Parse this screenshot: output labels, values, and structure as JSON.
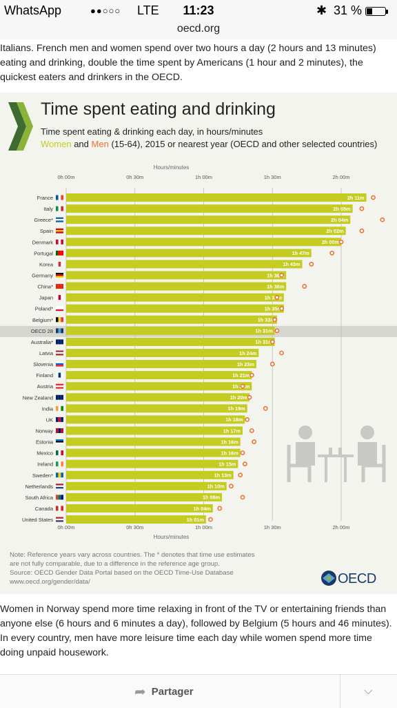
{
  "status_bar": {
    "app": "WhatsApp",
    "signal": "●●○○○",
    "network": "LTE",
    "time": "11:23",
    "bluetooth_icon": "bluetooth-icon",
    "battery": "31 %",
    "battery_level": 0.31
  },
  "browser": {
    "url": "oecd.org"
  },
  "article": {
    "intro": "Italians. French men and women spend over two hours a day (2 hours and 13 minutes) eating and drinking, double the time spent by Americans (1 hour and 2 minutes), the quickest eaters and drinkers in the OECD.",
    "outro": "Women in Norway spend more time relaxing in front of the TV or entertaining friends than anyone else (6 hours and 6 minutes a day), followed by Belgium (5 hours and 46 minutes). In every country, men have more leisure time each day while women spend more time doing unpaid housework."
  },
  "figure": {
    "title": "Time spent eating and drinking",
    "subtitle": "Time spent eating & drinking each day, in hours/minutes",
    "subtitle2_women": "Women",
    "subtitle2_and": "and",
    "subtitle2_men": "Men",
    "subtitle2_rest": "(15-64), 2015 or nearest year (OECD and other selected countries)",
    "note_lines": [
      "Note: Reference years vary across countries. The * denotes that time use estimates",
      "are not fully comparable, due to a difference in the reference age group.",
      "Source: OECD Gender Data Portal based on the OECD Time-Use Database",
      "www.oecd.org/gender/data/"
    ],
    "oecd_logo_text": "OECD",
    "colors": {
      "women": "#c4cc22",
      "men": "#f07030",
      "highlight_row": "#d6d6d0",
      "background": "#f4f4ee"
    }
  },
  "chart_data": {
    "type": "bar",
    "orientation": "horizontal",
    "xlabel": "Hours/minutes",
    "ticks": [
      "0h 00m",
      "0h 30m",
      "1h 00m",
      "1h 30m",
      "2h 00m"
    ],
    "tick_values": [
      0,
      30,
      60,
      90,
      120
    ],
    "xlim": [
      0,
      138
    ],
    "unit": "minutes",
    "grid": true,
    "highlight": "OECD 28",
    "categories": [
      "France",
      "Italy",
      "Greece*",
      "Spain",
      "Denmark",
      "Portugal",
      "Korea",
      "Germany",
      "China*",
      "Japan",
      "Poland*",
      "Belgium*",
      "OECD 28",
      "Australia*",
      "Latvia",
      "Slovenia",
      "Finland",
      "Austria",
      "New Zealand",
      "India",
      "UK",
      "Norway",
      "Estonia",
      "Mexico",
      "Ireland",
      "Sweden*",
      "Netherlands",
      "South Africa",
      "Canada",
      "United States"
    ],
    "flags": [
      "france-flag-icon",
      "italy-flag-icon",
      "greece-flag-icon",
      "spain-flag-icon",
      "denmark-flag-icon",
      "portugal-flag-icon",
      "korea-flag-icon",
      "germany-flag-icon",
      "china-flag-icon",
      "japan-flag-icon",
      "poland-flag-icon",
      "belgium-flag-icon",
      "oecd-icon",
      "australia-flag-icon",
      "latvia-flag-icon",
      "slovenia-flag-icon",
      "finland-flag-icon",
      "austria-flag-icon",
      "new-zealand-flag-icon",
      "india-flag-icon",
      "uk-flag-icon",
      "norway-flag-icon",
      "estonia-flag-icon",
      "mexico-flag-icon",
      "ireland-flag-icon",
      "sweden-flag-icon",
      "netherlands-flag-icon",
      "south-africa-flag-icon",
      "canada-flag-icon",
      "united-states-flag-icon"
    ],
    "labels": [
      "2h 11m",
      "2h 05m",
      "2h 04m",
      "2h 02m",
      "2h 00m",
      "1h 47m",
      "1h 43m",
      "1h 36m",
      "1h 36m",
      "1h 35m",
      "1h 35m",
      "1h 32m",
      "1h 31m",
      "1h 31m",
      "1h 24m",
      "1h 23m",
      "1h 21m",
      "1h 21m",
      "1h 20m",
      "1h 19m",
      "1h 18m",
      "1h 17m",
      "1h 16m",
      "1h 16m",
      "1h 15m",
      "1h 13m",
      "1h 10m",
      "1h 08m",
      "1h 04m",
      "1h 01m"
    ],
    "series": [
      {
        "name": "Women",
        "values": [
          131,
          125,
          124,
          122,
          120,
          107,
          103,
          96,
          96,
          95,
          95,
          92,
          91,
          91,
          84,
          83,
          81,
          81,
          80,
          79,
          78,
          77,
          76,
          76,
          75,
          73,
          70,
          68,
          64,
          61
        ]
      },
      {
        "name": "Men",
        "values": [
          134,
          129,
          138,
          129,
          120,
          116,
          107,
          94,
          104,
          92,
          94,
          91,
          92,
          90,
          94,
          90,
          81,
          77,
          80,
          87,
          79,
          81,
          82,
          77,
          78,
          76,
          72,
          77,
          67,
          63
        ]
      }
    ]
  },
  "bottom_bar": {
    "share_label": "Partager",
    "share_icon": "share-arrow-icon",
    "expand_icon": "chevron-down-icon"
  }
}
